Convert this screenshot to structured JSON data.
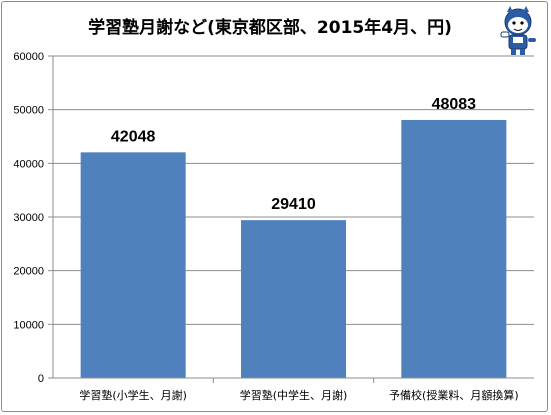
{
  "chart_data": {
    "type": "bar",
    "title": "学習塾月謝など(東京都区部、2015年4月、円)",
    "categories": [
      "学習塾(小学生、月謝)",
      "学習塾(中学生、月謝)",
      "予備校(授業料、月額換算)"
    ],
    "values": [
      42048,
      29410,
      48083
    ],
    "data_labels": [
      "42048",
      "29410",
      "48083"
    ],
    "ylim": [
      0,
      60000
    ],
    "yticks": [
      "0",
      "10000",
      "20000",
      "30000",
      "40000",
      "50000",
      "60000"
    ],
    "grid": true,
    "legend": "none",
    "colors": {
      "bar": "#4f81bd",
      "grid": "#8c8c8c",
      "axis": "#8c8c8c",
      "text": "#000000"
    }
  },
  "mascot": {
    "icon": "mascot-icon",
    "colors": {
      "body": "#2b5ca8",
      "face": "#ffffff"
    }
  }
}
